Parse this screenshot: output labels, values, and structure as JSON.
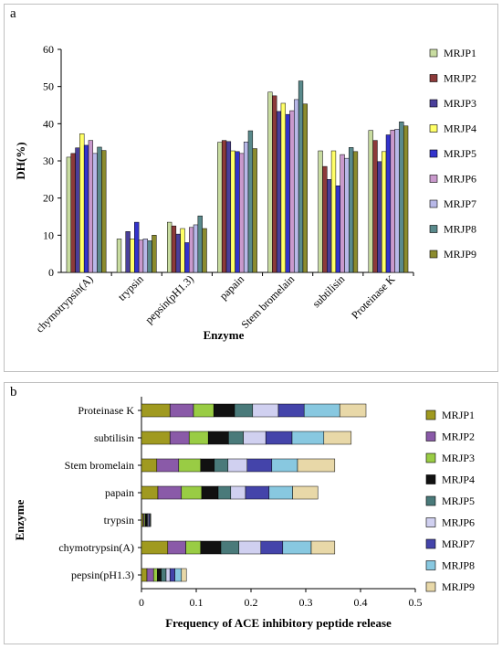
{
  "chart_data": [
    {
      "panel_label": "a",
      "type": "bar",
      "orientation": "vertical",
      "xlabel": "Enzyme",
      "ylabel": "DH(%)",
      "ylim": [
        0,
        60
      ],
      "yticks": [
        "0",
        "10",
        "20",
        "30",
        "40",
        "50",
        "60"
      ],
      "grid": false,
      "legend_position": "right",
      "categories": [
        "chymotrypsin(A)",
        "trypsin",
        "pepsin(pH1.3)",
        "papain",
        "Stem bromelain",
        "subtilisin",
        "Proteinase K"
      ],
      "series": [
        {
          "name": "MRJP1",
          "color": "#c8dca0",
          "values": [
            31,
            9,
            13.5,
            35,
            48.5,
            32.7,
            38.2
          ]
        },
        {
          "name": "MRJP2",
          "color": "#8c3a3a",
          "values": [
            32,
            0,
            12.5,
            35.5,
            47.5,
            28.5,
            35.5
          ]
        },
        {
          "name": "MRJP3",
          "color": "#4a3f9a",
          "values": [
            33.5,
            11,
            10.3,
            35.2,
            43.3,
            25,
            29.8
          ]
        },
        {
          "name": "MRJP4",
          "color": "#ffff66",
          "values": [
            37.3,
            9,
            11.8,
            32.7,
            45.5,
            32.7,
            32.5
          ]
        },
        {
          "name": "MRJP5",
          "color": "#3333cc",
          "values": [
            34.2,
            13.5,
            8,
            32.5,
            42.5,
            23.3,
            37
          ]
        },
        {
          "name": "MRJP6",
          "color": "#c999cc",
          "values": [
            35.5,
            8.7,
            12.1,
            32,
            43.5,
            31.7,
            38.3
          ]
        },
        {
          "name": "MRJP7",
          "color": "#b8b8e8",
          "values": [
            32,
            9,
            12.8,
            35.1,
            46.5,
            30.7,
            38.5
          ]
        },
        {
          "name": "MRJP8",
          "color": "#5a8a8c",
          "values": [
            33.7,
            8.5,
            15.2,
            38.1,
            51.5,
            33.6,
            40.5
          ]
        },
        {
          "name": "MRJP9",
          "color": "#8b8b2e",
          "values": [
            32.8,
            10,
            11.8,
            33.3,
            45.3,
            32.5,
            39.4
          ]
        }
      ]
    },
    {
      "panel_label": "b",
      "type": "bar",
      "orientation": "horizontal",
      "stacked": true,
      "xlabel": "Frequency of ACE inhibitory peptide release",
      "ylabel": "Enzyme",
      "xlim": [
        0,
        0.5
      ],
      "xticks": [
        "0",
        "0.1",
        "0.2",
        "0.3",
        "0.4",
        "0.5"
      ],
      "grid": false,
      "legend_position": "right",
      "categories": [
        "Proteinase K",
        "subtilisin",
        "Stem bromelain",
        "papain",
        "trypsin",
        "chymotrypsin(A)",
        "pepsin(pH1.3)"
      ],
      "series": [
        {
          "name": "MRJP1",
          "color": "#a09a20",
          "values": [
            0.052,
            0.052,
            0.028,
            0.03,
            0.003,
            0.048,
            0.01
          ]
        },
        {
          "name": "MRJP2",
          "color": "#8a5aa8",
          "values": [
            0.043,
            0.035,
            0.04,
            0.043,
            0.002,
            0.033,
            0.012
          ]
        },
        {
          "name": "MRJP3",
          "color": "#99cc44",
          "values": [
            0.037,
            0.035,
            0.04,
            0.037,
            0.002,
            0.027,
            0.007
          ]
        },
        {
          "name": "MRJP4",
          "color": "#111111",
          "values": [
            0.038,
            0.037,
            0.025,
            0.03,
            0.003,
            0.037,
            0.007
          ]
        },
        {
          "name": "MRJP5",
          "color": "#4a7a7a",
          "values": [
            0.033,
            0.027,
            0.025,
            0.023,
            0.001,
            0.033,
            0.009
          ]
        },
        {
          "name": "MRJP6",
          "color": "#d0d0f0",
          "values": [
            0.047,
            0.041,
            0.035,
            0.027,
            0.002,
            0.04,
            0.007
          ]
        },
        {
          "name": "MRJP7",
          "color": "#4444aa",
          "values": [
            0.047,
            0.048,
            0.045,
            0.043,
            0.002,
            0.04,
            0.009
          ]
        },
        {
          "name": "MRJP8",
          "color": "#88c8e0",
          "values": [
            0.065,
            0.058,
            0.047,
            0.043,
            0.001,
            0.052,
            0.012
          ]
        },
        {
          "name": "MRJP9",
          "color": "#e8d8a8",
          "values": [
            0.048,
            0.05,
            0.068,
            0.046,
            0.001,
            0.043,
            0.009
          ]
        }
      ]
    }
  ]
}
